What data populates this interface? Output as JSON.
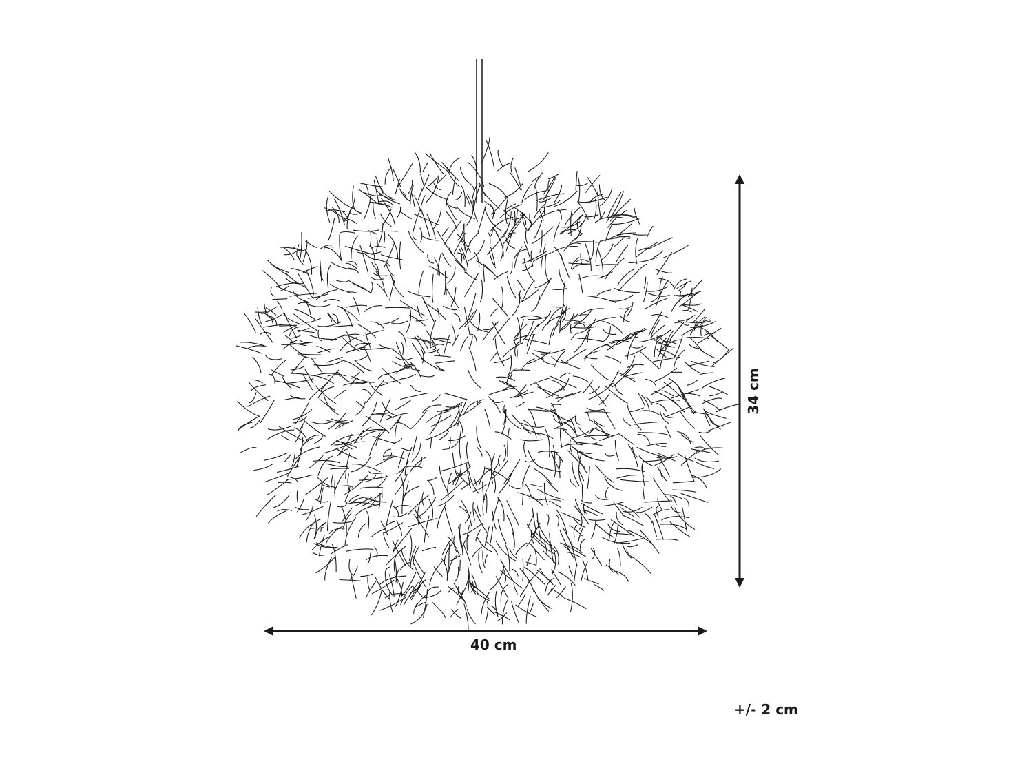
{
  "dimensions": {
    "width_label": "40 cm",
    "height_label": "34 cm",
    "tolerance_label": "+/- 2 cm"
  },
  "colors": {
    "line": "#1a1a1a",
    "background": "#ffffff"
  }
}
